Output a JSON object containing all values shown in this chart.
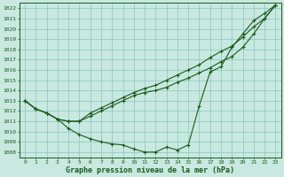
{
  "title": "Graphe pression niveau de la mer (hPa)",
  "xlabel_hours": [
    0,
    1,
    2,
    3,
    4,
    5,
    6,
    7,
    8,
    9,
    10,
    11,
    12,
    13,
    14,
    15,
    16,
    17,
    18,
    19,
    20,
    21,
    22,
    23
  ],
  "ylim": [
    1007.5,
    1022.5
  ],
  "yticks": [
    1008,
    1009,
    1010,
    1011,
    1012,
    1013,
    1014,
    1015,
    1016,
    1017,
    1018,
    1019,
    1020,
    1021,
    1022
  ],
  "background_color": "#c8e8e0",
  "grid_color": "#88c8c0",
  "line_color": "#1a5a1a",
  "series1": [
    1013.0,
    1012.2,
    1011.8,
    1011.2,
    1010.3,
    1009.7,
    1009.3,
    1009.0,
    1008.8,
    1008.7,
    1008.3,
    1008.0,
    1008.0,
    1008.5,
    1008.2,
    1008.7,
    1012.5,
    1015.8,
    1016.3,
    1018.2,
    1019.5,
    1020.8,
    1021.5,
    1022.3
  ],
  "series2": [
    1013.0,
    1012.2,
    1011.8,
    1011.2,
    1011.0,
    1011.0,
    1011.5,
    1012.0,
    1012.5,
    1013.0,
    1013.5,
    1013.8,
    1014.0,
    1014.3,
    1014.8,
    1015.2,
    1015.7,
    1016.2,
    1016.8,
    1017.3,
    1018.2,
    1019.5,
    1021.0,
    1022.3
  ],
  "series3": [
    1013.0,
    1012.2,
    1011.8,
    1011.2,
    1011.0,
    1011.0,
    1011.8,
    1012.3,
    1012.8,
    1013.3,
    1013.8,
    1014.2,
    1014.5,
    1015.0,
    1015.5,
    1016.0,
    1016.5,
    1017.2,
    1017.8,
    1018.3,
    1019.2,
    1020.2,
    1021.0,
    1022.3
  ]
}
